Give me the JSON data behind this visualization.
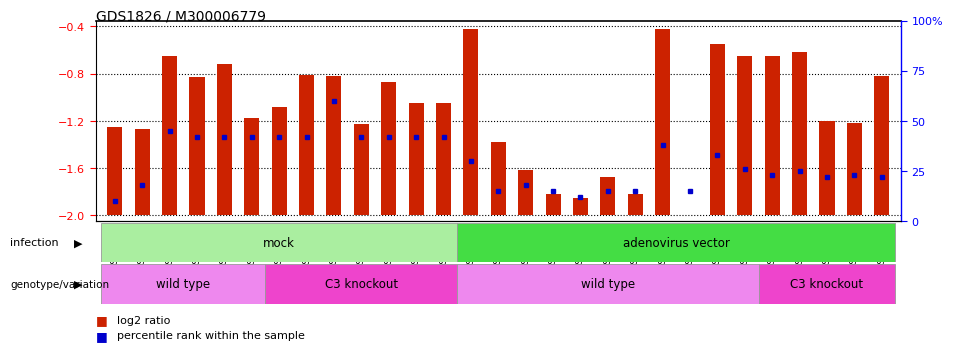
{
  "title": "GDS1826 / M300006779",
  "samples": [
    "GSM87316",
    "GSM87317",
    "GSM93998",
    "GSM93999",
    "GSM94000",
    "GSM94001",
    "GSM93633",
    "GSM93634",
    "GSM93651",
    "GSM93652",
    "GSM93653",
    "GSM93654",
    "GSM93657",
    "GSM86643",
    "GSM87306",
    "GSM87307",
    "GSM87308",
    "GSM87309",
    "GSM87310",
    "GSM87311",
    "GSM87312",
    "GSM87313",
    "GSM87314",
    "GSM87315",
    "GSM93655",
    "GSM93656",
    "GSM93658",
    "GSM93659",
    "GSM93660"
  ],
  "log2_ratio": [
    -1.25,
    -1.27,
    -0.65,
    -0.83,
    -0.72,
    -1.18,
    -1.08,
    -0.81,
    -0.82,
    -1.23,
    -0.87,
    -1.05,
    -1.05,
    -0.42,
    -1.38,
    -1.62,
    -1.82,
    -1.85,
    -1.68,
    -1.82,
    -0.42,
    -2.0,
    -0.55,
    -0.65,
    -0.65,
    -0.62,
    -1.2,
    -1.22,
    -0.82
  ],
  "percentile_rank": [
    10,
    18,
    45,
    42,
    42,
    42,
    42,
    42,
    60,
    42,
    42,
    42,
    42,
    30,
    15,
    18,
    15,
    12,
    15,
    15,
    38,
    15,
    33,
    26,
    23,
    25,
    22,
    23,
    22
  ],
  "infection_groups": [
    {
      "label": "mock",
      "start": 0,
      "end": 12,
      "color": "#AAEEA0"
    },
    {
      "label": "adenovirus vector",
      "start": 13,
      "end": 28,
      "color": "#44DD44"
    }
  ],
  "genotype_groups": [
    {
      "label": "wild type",
      "start": 0,
      "end": 5,
      "color": "#EE88EE"
    },
    {
      "label": "C3 knockout",
      "start": 6,
      "end": 12,
      "color": "#EE44CC"
    },
    {
      "label": "wild type",
      "start": 13,
      "end": 23,
      "color": "#EE88EE"
    },
    {
      "label": "C3 knockout",
      "start": 24,
      "end": 28,
      "color": "#EE44CC"
    }
  ],
  "bar_color": "#CC2200",
  "dot_color": "#0000CC",
  "ylim_left": [
    -2.05,
    -0.35
  ],
  "ylim_right": [
    0,
    100
  ],
  "yticks_left": [
    -2.0,
    -1.6,
    -1.2,
    -0.8,
    -0.4
  ],
  "yticks_right": [
    0,
    25,
    50,
    75,
    100
  ],
  "yticklabels_right": [
    "0",
    "25",
    "50",
    "75",
    "100%"
  ]
}
